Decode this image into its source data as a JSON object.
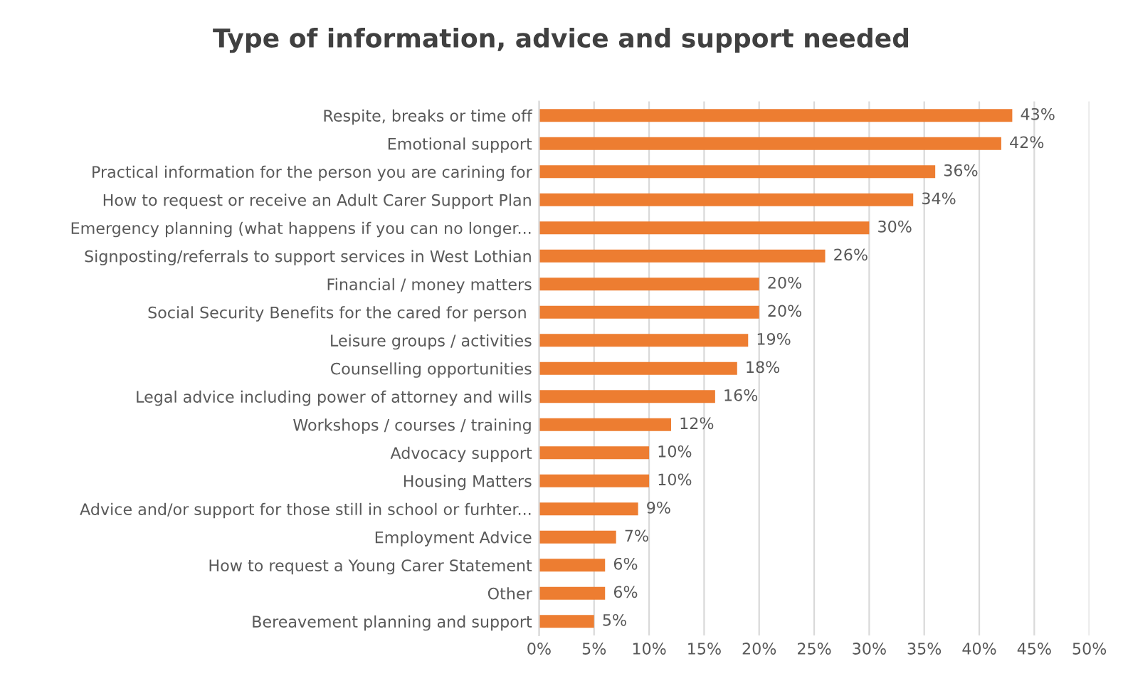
{
  "chart_data": {
    "type": "bar",
    "orientation": "horizontal",
    "title": "Type of information, advice and support needed",
    "categories": [
      "Respite, breaks or time off",
      "Emotional support",
      "Practical information for the person you are carining for",
      "How to request or receive an Adult Carer Support Plan",
      "Emergency planning (what happens if you can no longer...",
      "Signposting/referrals to support services in West Lothian",
      "Financial / money matters",
      "Social Security Benefits for the cared for person ",
      "Leisure groups / activities",
      "Counselling opportunities",
      "Legal advice including power of attorney and wills",
      "Workshops / courses / training",
      "Advocacy support",
      "Housing Matters",
      "Advice and/or support for those still in school or furhter...",
      "Employment Advice",
      "How to request a Young Carer Statement",
      "Other",
      "Bereavement planning and support"
    ],
    "values": [
      43,
      42,
      36,
      34,
      30,
      26,
      20,
      20,
      19,
      18,
      16,
      12,
      10,
      10,
      9,
      7,
      6,
      6,
      5
    ],
    "value_labels": [
      "43%",
      "42%",
      "36%",
      "34%",
      "30%",
      "26%",
      "20%",
      "20%",
      "19%",
      "18%",
      "16%",
      "12%",
      "10%",
      "10%",
      "9%",
      "7%",
      "6%",
      "6%",
      "5%"
    ],
    "color": "#ed7d31",
    "xlim": [
      0,
      50
    ],
    "xticks": [
      {
        "value": 0,
        "label": "0%"
      },
      {
        "value": 5,
        "label": "5%"
      },
      {
        "value": 10,
        "label": "10%"
      },
      {
        "value": 15,
        "label": "15%"
      },
      {
        "value": 20,
        "label": "20%"
      },
      {
        "value": 25,
        "label": "25%"
      },
      {
        "value": 30,
        "label": "30%"
      },
      {
        "value": 35,
        "label": "35%"
      },
      {
        "value": 40,
        "label": "40%"
      },
      {
        "value": 45,
        "label": "45%"
      },
      {
        "value": 50,
        "label": "50%"
      }
    ],
    "grid": "x",
    "legend": false
  }
}
